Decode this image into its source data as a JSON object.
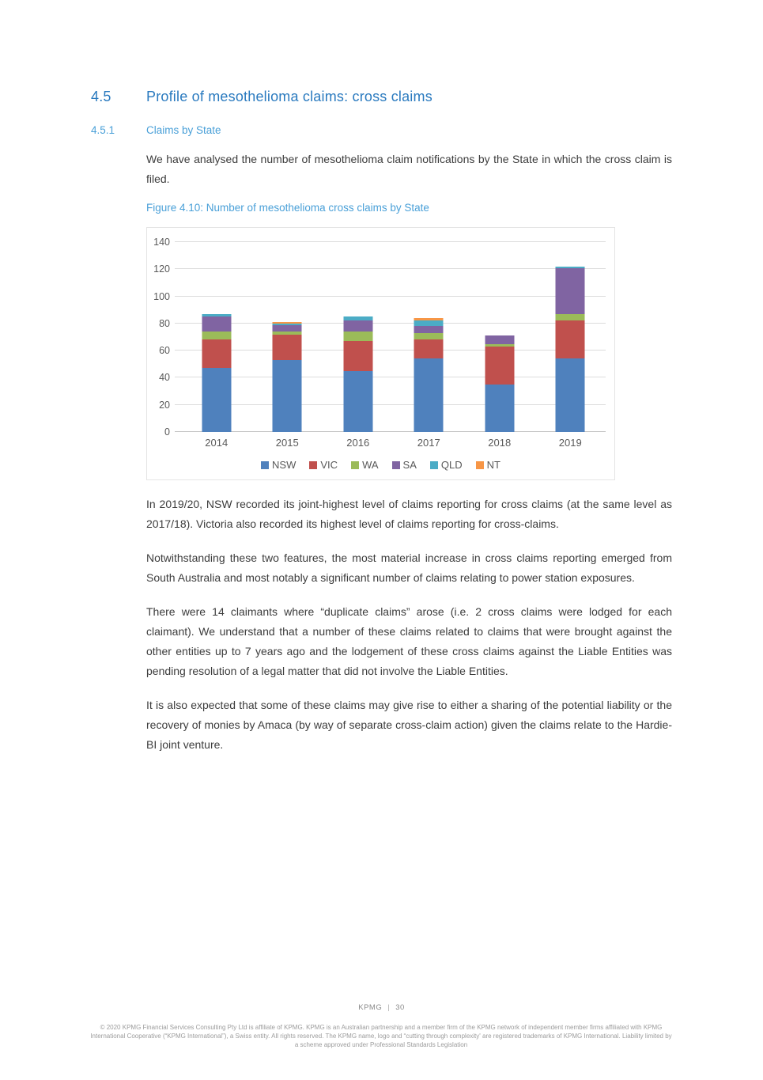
{
  "page": {
    "section_number": "4.5",
    "section_title": "Profile of mesothelioma claims: cross claims",
    "subsection_number": "4.5.1",
    "subsection_title": "Claims by State",
    "intro_paragraph": "We have analysed the number of mesothelioma claim notifications by the State in which the cross claim is filed.",
    "figure_caption": "Figure 4.10: Number of mesothelioma cross claims by State",
    "paragraphs": [
      "In 2019/20, NSW recorded its joint-highest level of claims reporting for cross claims (at the same level as 2017/18). Victoria also recorded its highest level of claims reporting for cross-claims.",
      "Notwithstanding these two features, the most material increase in cross claims reporting emerged from South Australia and most notably a significant number of claims relating to power station exposures.",
      "There were 14 claimants where “duplicate claims” arose (i.e. 2 cross claims were lodged for each claimant). We understand that a number of these claims related to claims that were brought against the other entities up to 7 years ago and the lodgement of these cross claims against the Liable Entities was pending resolution of a legal matter that did not involve the Liable Entities.",
      "It is also expected that some of these claims may give rise to either a sharing of the potential liability or the recovery of monies by Amaca (by way of separate cross-claim action) given the claims relate to the Hardie-BI joint venture."
    ]
  },
  "chart_data": {
    "type": "bar",
    "stacked": true,
    "title": "Figure 4.10: Number of mesothelioma cross claims by State",
    "categories": [
      "2014",
      "2015",
      "2016",
      "2017",
      "2018",
      "2019"
    ],
    "series": [
      {
        "name": "NSW",
        "color": "#4f81bd",
        "values": [
          47,
          53,
          45,
          54,
          35,
          54
        ]
      },
      {
        "name": "VIC",
        "color": "#c0504d",
        "values": [
          21,
          19,
          22,
          14,
          28,
          28
        ]
      },
      {
        "name": "WA",
        "color": "#9bbb59",
        "values": [
          6,
          2,
          7,
          5,
          2,
          5
        ]
      },
      {
        "name": "SA",
        "color": "#8064a2",
        "values": [
          11,
          5,
          8,
          5,
          6,
          34
        ]
      },
      {
        "name": "QLD",
        "color": "#4bacc6",
        "values": [
          2,
          1,
          3,
          4,
          0,
          1
        ]
      },
      {
        "name": "NT",
        "color": "#f79646",
        "values": [
          0,
          1,
          0,
          2,
          0,
          0
        ]
      }
    ],
    "xlabel": "",
    "ylabel": "",
    "ylim": [
      0,
      140
    ],
    "ytick_step": 20,
    "grid": true,
    "legend_position": "bottom"
  },
  "footer": {
    "brand": "KPMG",
    "page_number": "30",
    "copyright": "© 2020 KPMG Financial Services Consulting Pty Ltd is affiliate of KPMG. KPMG is an Australian partnership and a member firm of the KPMG network of independent member firms affiliated with KPMG International Cooperative (“KPMG International”), a Swiss entity. All rights reserved. The KPMG name, logo and “cutting through complexity' are registered trademarks of KPMG International. Liability limited by a scheme approved under Professional Standards Legislation"
  },
  "colors": {
    "heading_blue": "#2a7abf",
    "subheading_blue": "#4aa0d8",
    "body_text": "#3c3c3c",
    "axis_text": "#595959",
    "gridline": "#dcdcdc"
  }
}
